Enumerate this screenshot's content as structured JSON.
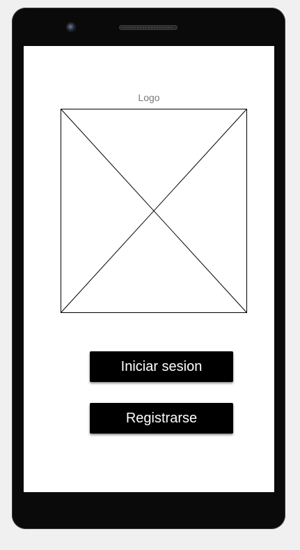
{
  "screen": {
    "logo_label": "Logo",
    "logo_placeholder_icon": "image-placeholder-icon",
    "buttons": {
      "login_label": "Iniciar sesion",
      "register_label": "Registrarse"
    }
  },
  "colors": {
    "button_background": "#000000",
    "button_text": "#ffffff",
    "screen_background": "#ffffff",
    "device_body": "#0a0a0a"
  }
}
